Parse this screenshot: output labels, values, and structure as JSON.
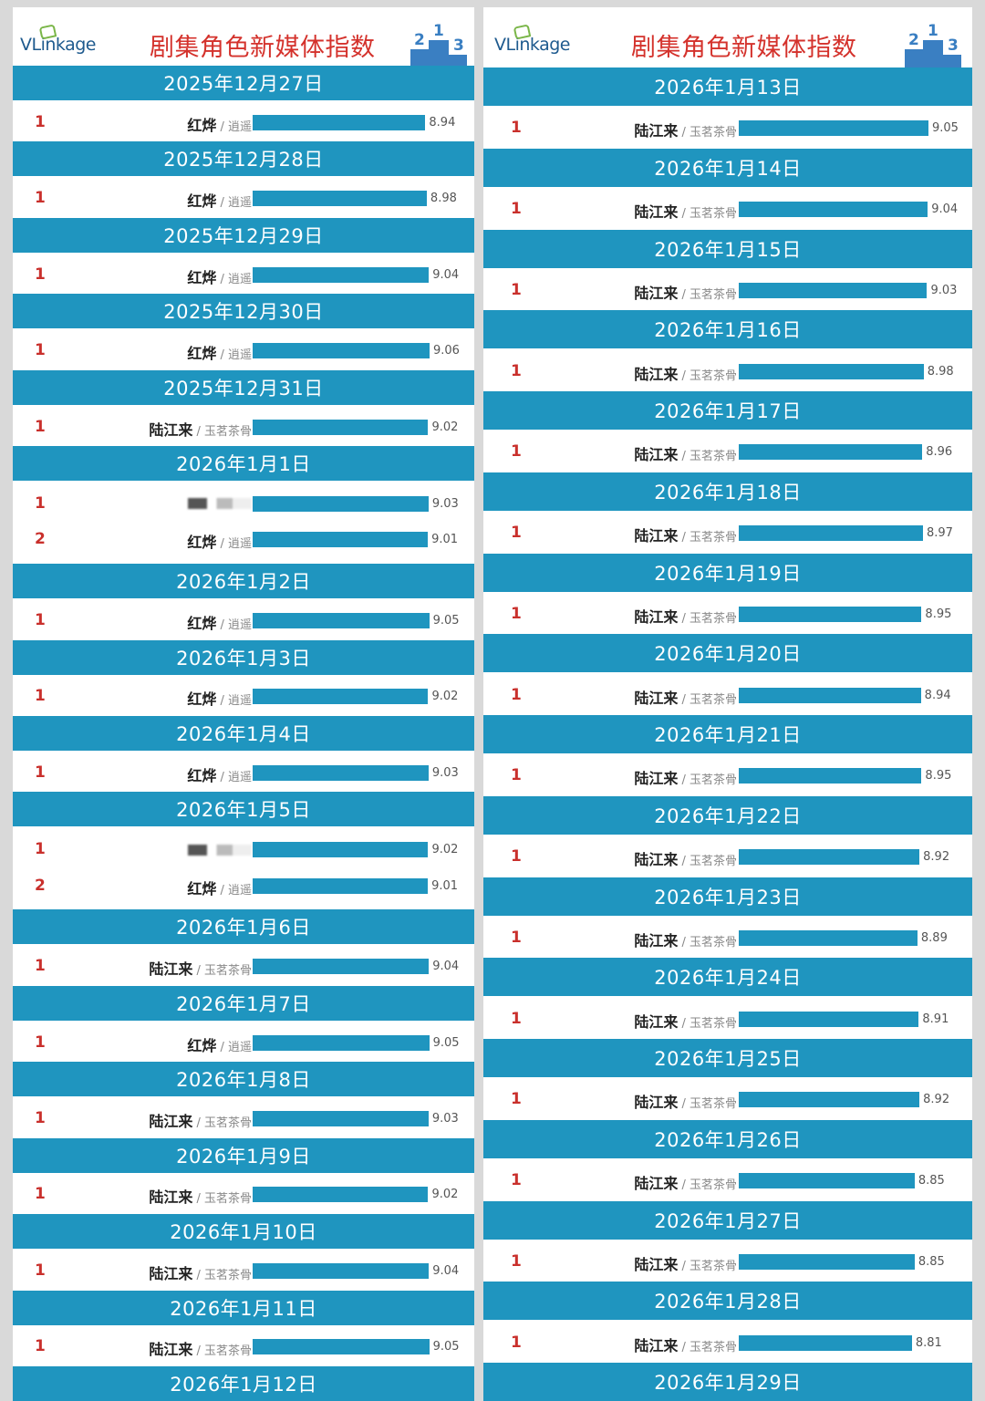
{
  "brand": {
    "logo_text": "VLinkage",
    "title": "剧集角色新媒体指数",
    "podium_digits": [
      "2",
      "1",
      "3"
    ]
  },
  "colors": {
    "bar": "#1f95bf",
    "rank": "#c9302c",
    "title": "#d4322c"
  },
  "chart_data": [
    {
      "type": "bar",
      "title": "剧集角色新媒体指数",
      "x_scale_min": 4.0,
      "days": [
        {
          "date": "2025年12月27日",
          "entries": [
            {
              "rank": "1",
              "actor": "红烨",
              "role": "逍遥",
              "value": 8.94
            }
          ]
        },
        {
          "date": "2025年12月28日",
          "entries": [
            {
              "rank": "1",
              "actor": "红烨",
              "role": "逍遥",
              "value": 8.98
            }
          ]
        },
        {
          "date": "2025年12月29日",
          "entries": [
            {
              "rank": "1",
              "actor": "红烨",
              "role": "逍遥",
              "value": 9.04
            }
          ]
        },
        {
          "date": "2025年12月30日",
          "entries": [
            {
              "rank": "1",
              "actor": "红烨",
              "role": "逍遥",
              "value": 9.06
            }
          ]
        },
        {
          "date": "2025年12月31日",
          "entries": [
            {
              "rank": "1",
              "actor": "陆江来",
              "role": "玉茗茶骨",
              "value": 9.02
            }
          ]
        },
        {
          "date": "2026年1月1日",
          "entries": [
            {
              "rank": "1",
              "actor": "",
              "role": "",
              "value": 9.03,
              "blurred": true
            },
            {
              "rank": "2",
              "actor": "红烨",
              "role": "逍遥",
              "value": 9.01
            }
          ]
        },
        {
          "date": "2026年1月2日",
          "entries": [
            {
              "rank": "1",
              "actor": "红烨",
              "role": "逍遥",
              "value": 9.05
            }
          ]
        },
        {
          "date": "2026年1月3日",
          "entries": [
            {
              "rank": "1",
              "actor": "红烨",
              "role": "逍遥",
              "value": 9.02
            }
          ]
        },
        {
          "date": "2026年1月4日",
          "entries": [
            {
              "rank": "1",
              "actor": "红烨",
              "role": "逍遥",
              "value": 9.03
            }
          ]
        },
        {
          "date": "2026年1月5日",
          "entries": [
            {
              "rank": "1",
              "actor": "",
              "role": "",
              "value": 9.02,
              "blurred": true
            },
            {
              "rank": "2",
              "actor": "红烨",
              "role": "逍遥",
              "value": 9.01
            }
          ]
        },
        {
          "date": "2026年1月6日",
          "entries": [
            {
              "rank": "1",
              "actor": "陆江来",
              "role": "玉茗茶骨",
              "value": 9.04
            }
          ]
        },
        {
          "date": "2026年1月7日",
          "entries": [
            {
              "rank": "1",
              "actor": "红烨",
              "role": "逍遥",
              "value": 9.05
            }
          ]
        },
        {
          "date": "2026年1月8日",
          "entries": [
            {
              "rank": "1",
              "actor": "陆江来",
              "role": "玉茗茶骨",
              "value": 9.03
            }
          ]
        },
        {
          "date": "2026年1月9日",
          "entries": [
            {
              "rank": "1",
              "actor": "陆江来",
              "role": "玉茗茶骨",
              "value": 9.02
            }
          ]
        },
        {
          "date": "2026年1月10日",
          "entries": [
            {
              "rank": "1",
              "actor": "陆江来",
              "role": "玉茗茶骨",
              "value": 9.04
            }
          ]
        },
        {
          "date": "2026年1月11日",
          "entries": [
            {
              "rank": "1",
              "actor": "陆江来",
              "role": "玉茗茶骨",
              "value": 9.05
            }
          ]
        },
        {
          "date": "2026年1月12日",
          "entries": []
        }
      ]
    },
    {
      "type": "bar",
      "title": "剧集角色新媒体指数",
      "x_scale_min": 6.3,
      "days": [
        {
          "date": "2026年1月13日",
          "entries": [
            {
              "rank": "1",
              "actor": "陆江来",
              "role": "玉茗茶骨",
              "value": 9.05
            }
          ]
        },
        {
          "date": "2026年1月14日",
          "entries": [
            {
              "rank": "1",
              "actor": "陆江来",
              "role": "玉茗茶骨",
              "value": 9.04
            }
          ]
        },
        {
          "date": "2026年1月15日",
          "entries": [
            {
              "rank": "1",
              "actor": "陆江来",
              "role": "玉茗茶骨",
              "value": 9.03
            }
          ]
        },
        {
          "date": "2026年1月16日",
          "entries": [
            {
              "rank": "1",
              "actor": "陆江来",
              "role": "玉茗茶骨",
              "value": 8.98
            }
          ]
        },
        {
          "date": "2026年1月17日",
          "entries": [
            {
              "rank": "1",
              "actor": "陆江来",
              "role": "玉茗茶骨",
              "value": 8.96
            }
          ]
        },
        {
          "date": "2026年1月18日",
          "entries": [
            {
              "rank": "1",
              "actor": "陆江来",
              "role": "玉茗茶骨",
              "value": 8.97
            }
          ]
        },
        {
          "date": "2026年1月19日",
          "entries": [
            {
              "rank": "1",
              "actor": "陆江来",
              "role": "玉茗茶骨",
              "value": 8.95
            }
          ]
        },
        {
          "date": "2026年1月20日",
          "entries": [
            {
              "rank": "1",
              "actor": "陆江来",
              "role": "玉茗茶骨",
              "value": 8.94
            }
          ]
        },
        {
          "date": "2026年1月21日",
          "entries": [
            {
              "rank": "1",
              "actor": "陆江来",
              "role": "玉茗茶骨",
              "value": 8.95
            }
          ]
        },
        {
          "date": "2026年1月22日",
          "entries": [
            {
              "rank": "1",
              "actor": "陆江来",
              "role": "玉茗茶骨",
              "value": 8.92
            }
          ]
        },
        {
          "date": "2026年1月23日",
          "entries": [
            {
              "rank": "1",
              "actor": "陆江来",
              "role": "玉茗茶骨",
              "value": 8.89
            }
          ]
        },
        {
          "date": "2026年1月24日",
          "entries": [
            {
              "rank": "1",
              "actor": "陆江来",
              "role": "玉茗茶骨",
              "value": 8.91
            }
          ]
        },
        {
          "date": "2026年1月25日",
          "entries": [
            {
              "rank": "1",
              "actor": "陆江来",
              "role": "玉茗茶骨",
              "value": 8.92
            }
          ]
        },
        {
          "date": "2026年1月26日",
          "entries": [
            {
              "rank": "1",
              "actor": "陆江来",
              "role": "玉茗茶骨",
              "value": 8.85
            }
          ]
        },
        {
          "date": "2026年1月27日",
          "entries": [
            {
              "rank": "1",
              "actor": "陆江来",
              "role": "玉茗茶骨",
              "value": 8.85
            }
          ]
        },
        {
          "date": "2026年1月28日",
          "entries": [
            {
              "rank": "1",
              "actor": "陆江来",
              "role": "玉茗茶骨",
              "value": 8.81
            }
          ]
        },
        {
          "date": "2026年1月29日",
          "entries": []
        }
      ]
    }
  ]
}
